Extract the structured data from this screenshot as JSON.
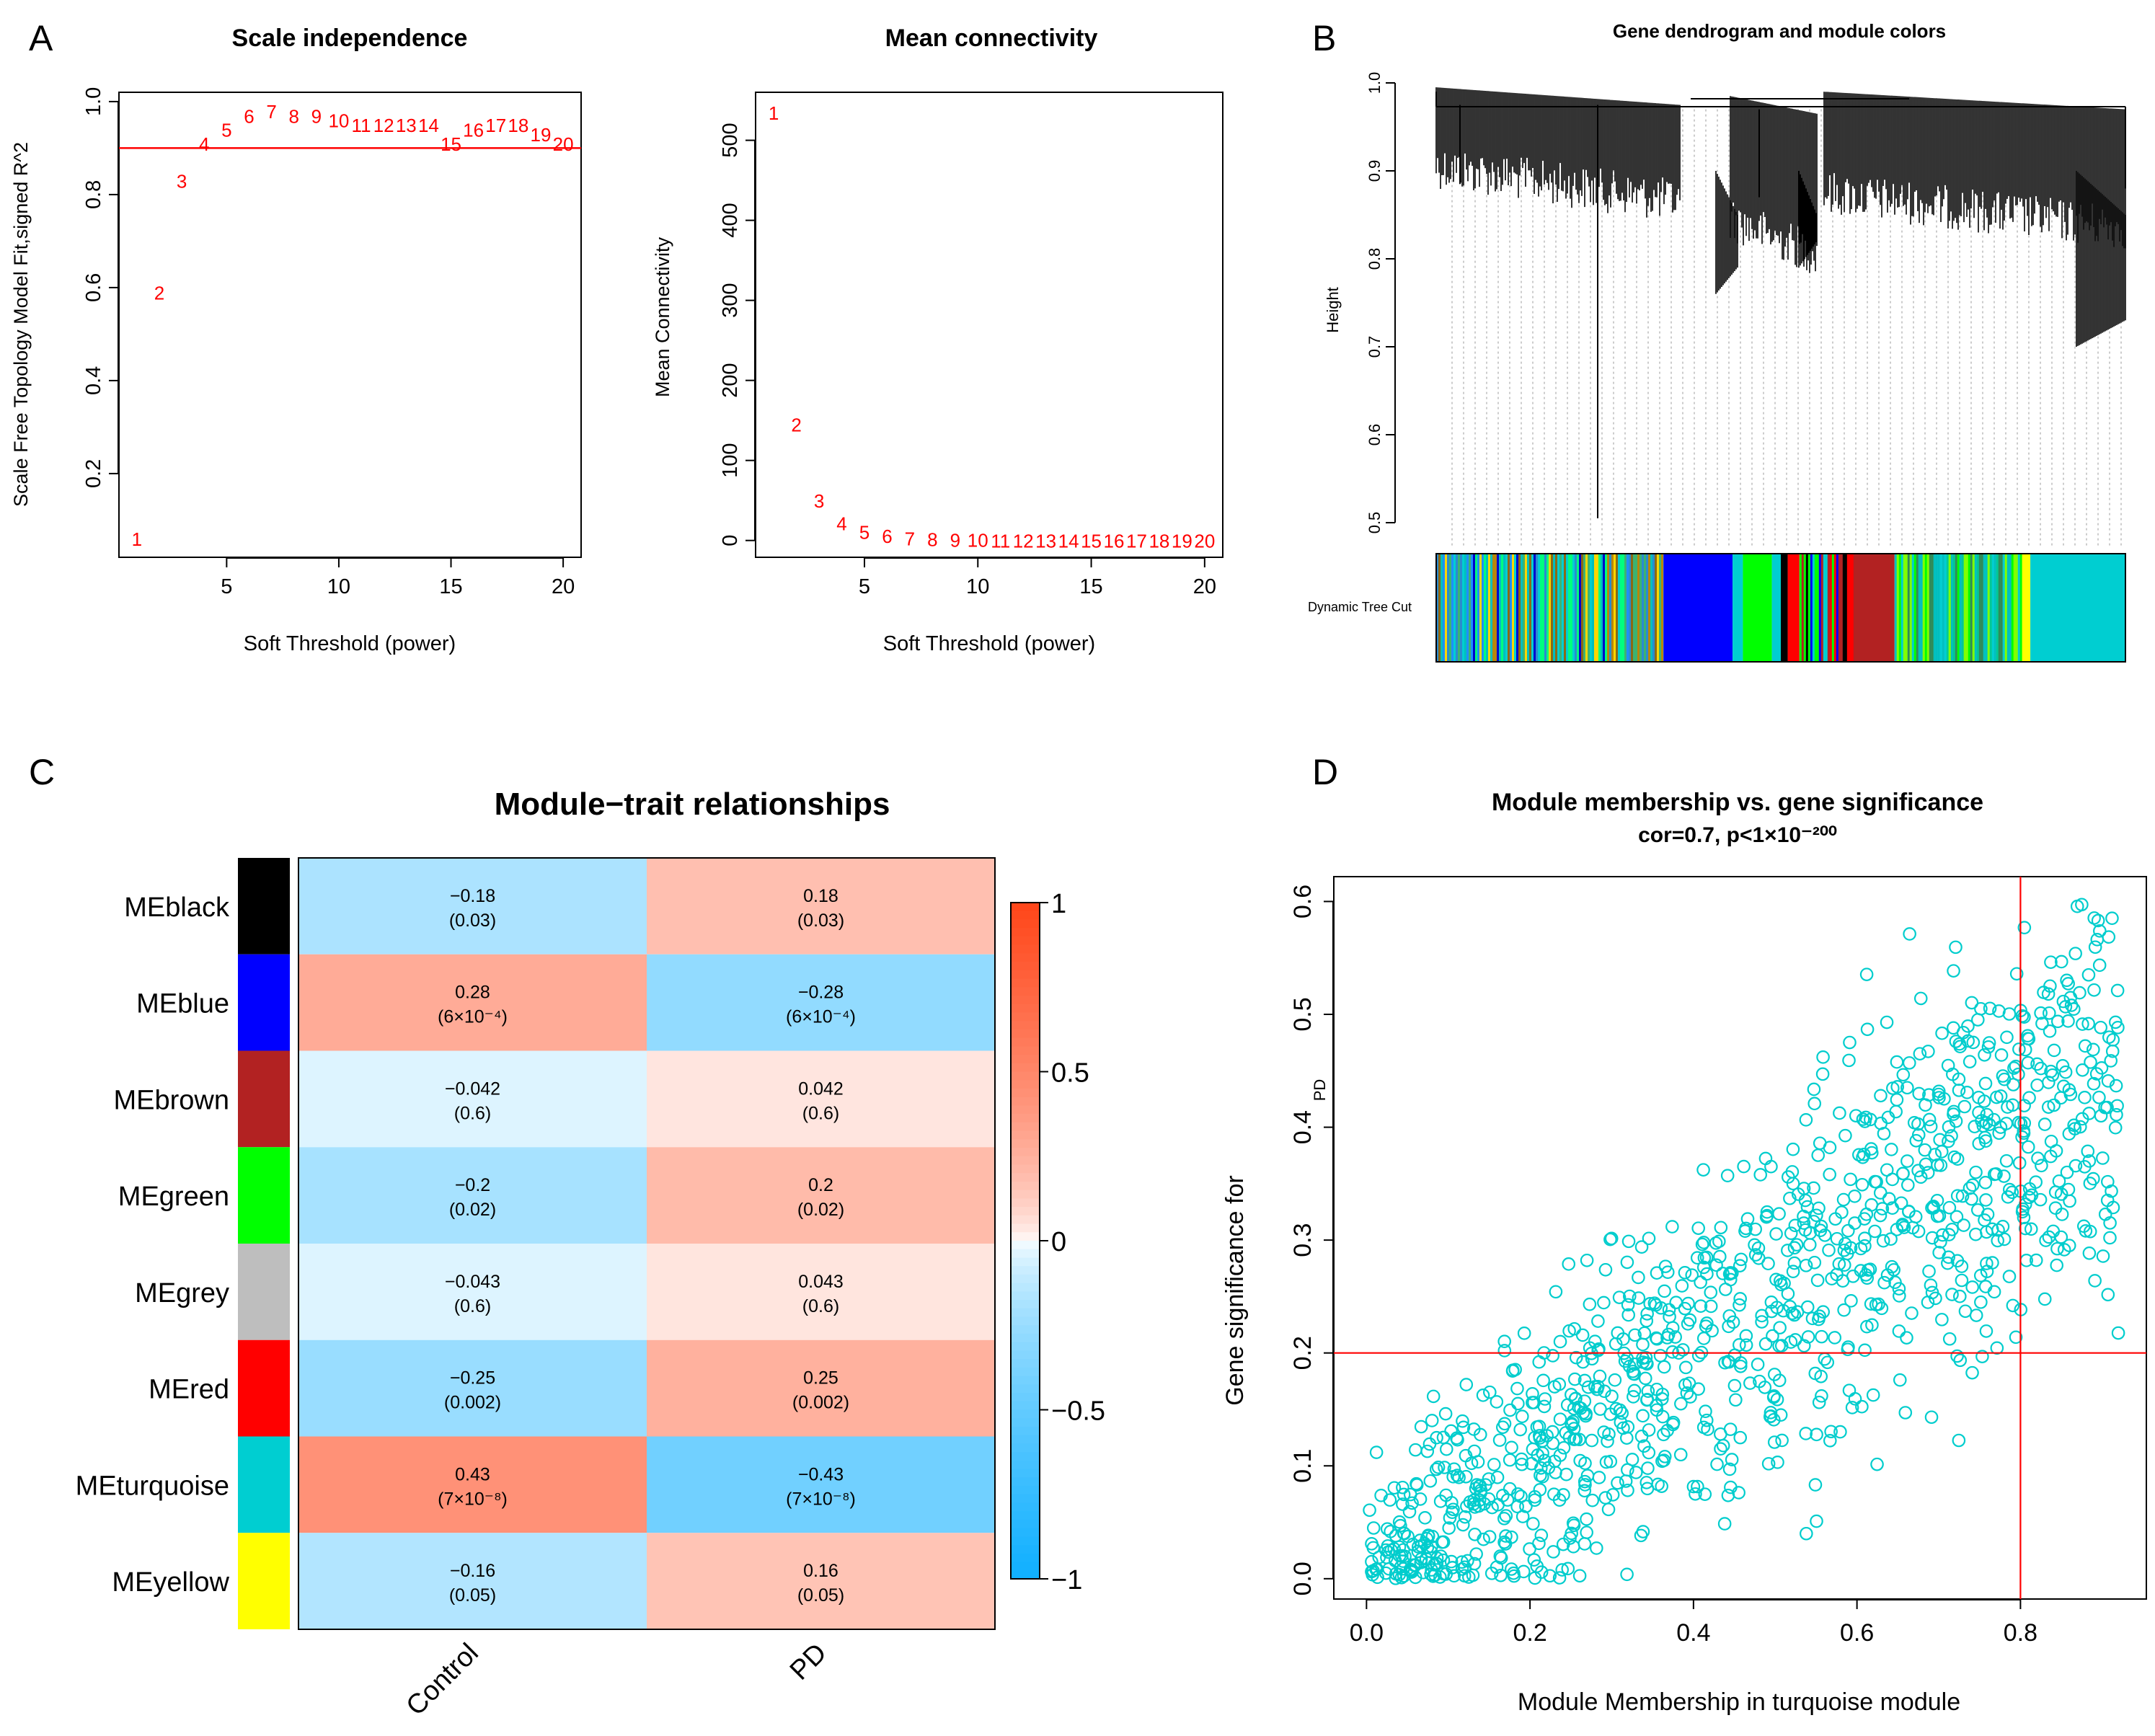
{
  "panel_labels": [
    "A",
    "B",
    "C",
    "D"
  ],
  "colors": {
    "red": "#ff0000",
    "frame": "#000000",
    "turquoise": "#00cdcd",
    "neg_strong": "#0a72e6",
    "pos_strong": "#ff2400",
    "neutral": "#ffffff"
  },
  "chart_data": [
    {
      "id": "A1",
      "type": "scatter",
      "title": "Scale independence",
      "xlabel": "Soft Threshold (power)",
      "ylabel": "Scale Free Topology Model Fit,signed R^2",
      "xlim": [
        0.2,
        20.8
      ],
      "ylim": [
        0.02,
        1.02
      ],
      "xticks": [
        5,
        10,
        15,
        20
      ],
      "yticks": [
        0.2,
        0.4,
        0.6,
        0.8,
        1.0
      ],
      "xtick_labels": [
        "5",
        "10",
        "15",
        "20"
      ],
      "ytick_labels": [
        "0.2",
        "0.4",
        "0.6",
        "0.8",
        "1.0"
      ],
      "hline": 0.9,
      "points": [
        {
          "x": 1,
          "y": 0.06,
          "label": "1"
        },
        {
          "x": 2,
          "y": 0.59,
          "label": "2"
        },
        {
          "x": 3,
          "y": 0.83,
          "label": "3"
        },
        {
          "x": 4,
          "y": 0.91,
          "label": "4"
        },
        {
          "x": 5,
          "y": 0.94,
          "label": "5"
        },
        {
          "x": 6,
          "y": 0.97,
          "label": "6"
        },
        {
          "x": 7,
          "y": 0.98,
          "label": "7"
        },
        {
          "x": 8,
          "y": 0.97,
          "label": "8"
        },
        {
          "x": 9,
          "y": 0.97,
          "label": "9"
        },
        {
          "x": 10,
          "y": 0.96,
          "label": "10"
        },
        {
          "x": 11,
          "y": 0.95,
          "label": "11"
        },
        {
          "x": 12,
          "y": 0.95,
          "label": "12"
        },
        {
          "x": 13,
          "y": 0.95,
          "label": "13"
        },
        {
          "x": 14,
          "y": 0.95,
          "label": "14"
        },
        {
          "x": 15,
          "y": 0.91,
          "label": "15"
        },
        {
          "x": 16,
          "y": 0.94,
          "label": "16"
        },
        {
          "x": 17,
          "y": 0.95,
          "label": "17"
        },
        {
          "x": 18,
          "y": 0.95,
          "label": "18"
        },
        {
          "x": 19,
          "y": 0.93,
          "label": "19"
        },
        {
          "x": 20,
          "y": 0.91,
          "label": "20"
        }
      ]
    },
    {
      "id": "A2",
      "type": "scatter",
      "title": "Mean connectivity",
      "xlabel": "Soft Threshold (power)",
      "ylabel": "Mean Connectivity",
      "xlim": [
        0.2,
        20.8
      ],
      "ylim": [
        -21,
        560
      ],
      "xticks": [
        5,
        10,
        15,
        20
      ],
      "yticks": [
        0,
        100,
        200,
        300,
        400,
        500
      ],
      "xtick_labels": [
        "5",
        "10",
        "15",
        "20"
      ],
      "ytick_labels": [
        "0",
        "100",
        "200",
        "300",
        "400",
        "500"
      ],
      "points": [
        {
          "x": 1,
          "y": 535,
          "label": "1"
        },
        {
          "x": 2,
          "y": 145,
          "label": "2"
        },
        {
          "x": 3,
          "y": 50,
          "label": "3"
        },
        {
          "x": 4,
          "y": 22,
          "label": "4"
        },
        {
          "x": 5,
          "y": 11,
          "label": "5"
        },
        {
          "x": 6,
          "y": 6,
          "label": "6"
        },
        {
          "x": 7,
          "y": 3,
          "label": "7"
        },
        {
          "x": 8,
          "y": 2,
          "label": "8"
        },
        {
          "x": 9,
          "y": 1,
          "label": "9"
        },
        {
          "x": 10,
          "y": 1,
          "label": "10"
        },
        {
          "x": 11,
          "y": 0,
          "label": "11"
        },
        {
          "x": 12,
          "y": 0,
          "label": "12"
        },
        {
          "x": 13,
          "y": 0,
          "label": "13"
        },
        {
          "x": 14,
          "y": 0,
          "label": "14"
        },
        {
          "x": 15,
          "y": 0,
          "label": "15"
        },
        {
          "x": 16,
          "y": 0,
          "label": "16"
        },
        {
          "x": 17,
          "y": 0,
          "label": "17"
        },
        {
          "x": 18,
          "y": 0,
          "label": "18"
        },
        {
          "x": 19,
          "y": 0,
          "label": "19"
        },
        {
          "x": 20,
          "y": 0,
          "label": "20"
        }
      ]
    },
    {
      "id": "B",
      "type": "dendrogram",
      "title": "Gene dendrogram and module colors",
      "ylabel": "Height",
      "ylim": [
        0.5,
        1.0
      ],
      "yticks": [
        0.5,
        0.6,
        0.7,
        0.8,
        0.9,
        1.0
      ],
      "ytick_labels": [
        "0.5",
        "0.6",
        "0.7",
        "0.8",
        "0.9",
        "1.0"
      ],
      "row_label": "Dynamic Tree Cut",
      "color_segments": [
        {
          "from": 0.0,
          "to": 0.33,
          "color": "striped"
        },
        {
          "from": 0.33,
          "to": 0.43,
          "color": "#0000ff"
        },
        {
          "from": 0.43,
          "to": 0.445,
          "color": "#00ced1"
        },
        {
          "from": 0.445,
          "to": 0.487,
          "color": "#00ff00"
        },
        {
          "from": 0.487,
          "to": 0.5,
          "color": "#00ced1"
        },
        {
          "from": 0.5,
          "to": 0.51,
          "color": "#000000"
        },
        {
          "from": 0.51,
          "to": 0.527,
          "color": "#ff0000"
        },
        {
          "from": 0.527,
          "to": 0.61,
          "color": "striped2"
        },
        {
          "from": 0.61,
          "to": 0.665,
          "color": "#b22222"
        },
        {
          "from": 0.665,
          "to": 0.85,
          "color": "striped3"
        },
        {
          "from": 0.85,
          "to": 0.862,
          "color": "#ffff00"
        },
        {
          "from": 0.862,
          "to": 1.0,
          "color": "#00ced1"
        }
      ]
    },
    {
      "id": "C",
      "type": "heatmap",
      "title": "Module−trait relationships",
      "columns": [
        "Control",
        "PD"
      ],
      "rows": [
        {
          "name": "MEblack",
          "color": "#000000",
          "cells": [
            {
              "value": -0.18,
              "r": "−0.18",
              "p": "(0.03)"
            },
            {
              "value": 0.18,
              "r": "0.18",
              "p": "(0.03)"
            }
          ]
        },
        {
          "name": "MEblue",
          "color": "#0000ff",
          "cells": [
            {
              "value": 0.28,
              "r": "0.28",
              "p": "(6×10⁻⁴)"
            },
            {
              "value": -0.28,
              "r": "−0.28",
              "p": "(6×10⁻⁴)"
            }
          ]
        },
        {
          "name": "MEbrown",
          "color": "#b22222",
          "cells": [
            {
              "value": -0.042,
              "r": "−0.042",
              "p": "(0.6)"
            },
            {
              "value": 0.042,
              "r": "0.042",
              "p": "(0.6)"
            }
          ]
        },
        {
          "name": "MEgreen",
          "color": "#00ff00",
          "cells": [
            {
              "value": -0.2,
              "r": "−0.2",
              "p": "(0.02)"
            },
            {
              "value": 0.2,
              "r": "0.2",
              "p": "(0.02)"
            }
          ]
        },
        {
          "name": "MEgrey",
          "color": "#bebebe",
          "cells": [
            {
              "value": -0.043,
              "r": "−0.043",
              "p": "(0.6)"
            },
            {
              "value": 0.043,
              "r": "0.043",
              "p": "(0.6)"
            }
          ]
        },
        {
          "name": "MEred",
          "color": "#ff0000",
          "cells": [
            {
              "value": -0.25,
              "r": "−0.25",
              "p": "(0.002)"
            },
            {
              "value": 0.25,
              "r": "0.25",
              "p": "(0.002)"
            }
          ]
        },
        {
          "name": "MEturquoise",
          "color": "#00ced1",
          "cells": [
            {
              "value": 0.43,
              "r": "0.43",
              "p": "(7×10⁻⁸)"
            },
            {
              "value": -0.43,
              "r": "−0.43",
              "p": "(7×10⁻⁸)"
            }
          ]
        },
        {
          "name": "MEyellow",
          "color": "#ffff00",
          "cells": [
            {
              "value": -0.16,
              "r": "−0.16",
              "p": "(0.05)"
            },
            {
              "value": 0.16,
              "r": "0.16",
              "p": "(0.05)"
            }
          ]
        }
      ],
      "colorbar": {
        "ticks": [
          1,
          0.5,
          0,
          -0.5,
          -1
        ],
        "tick_labels": [
          "1",
          "0.5",
          "0",
          "−0.5",
          "−1"
        ]
      }
    },
    {
      "id": "D",
      "type": "scatter",
      "title": "Module membership vs. gene significance",
      "subtitle": "cor=0.7, p<1×10⁻²⁰⁰",
      "xlabel": "Module Membership in turquoise module",
      "ylabel_line1": "Gene significance for",
      "ylabel_line2": "PD",
      "xlim": [
        -0.04,
        0.954
      ],
      "ylim": [
        -0.018,
        0.622
      ],
      "xticks": [
        0,
        0.2,
        0.4,
        0.6,
        0.8
      ],
      "yticks": [
        0,
        0.1,
        0.2,
        0.3,
        0.4,
        0.5,
        0.6
      ],
      "xtick_labels": [
        "0.0",
        "0.2",
        "0.4",
        "0.6",
        "0.8"
      ],
      "ytick_labels": [
        "0.0",
        "0.1",
        "0.2",
        "0.3",
        "0.4",
        "0.5",
        "0.6"
      ],
      "vline": 0.8,
      "hline": 0.2,
      "n_points": 1100,
      "trend": {
        "slope": 0.5,
        "intercept": 0.0
      },
      "marker_color": "#00cdcd"
    }
  ]
}
